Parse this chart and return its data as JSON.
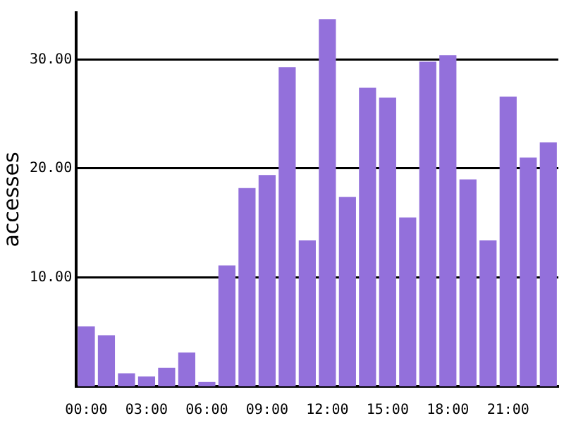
{
  "chart_data": {
    "type": "bar",
    "ylabel": "accesses",
    "categories": [
      "00:00",
      null,
      null,
      "03:00",
      null,
      null,
      "06:00",
      null,
      null,
      "09:00",
      null,
      null,
      "12:00",
      null,
      null,
      "15:00",
      null,
      null,
      "18:00",
      null,
      null,
      "21:00",
      null,
      null
    ],
    "values": [
      5.5,
      4.7,
      1.2,
      0.9,
      1.7,
      3.1,
      0.4,
      11.1,
      18.2,
      19.4,
      29.3,
      13.4,
      33.7,
      17.4,
      27.4,
      26.5,
      15.5,
      29.8,
      30.4,
      19.0,
      13.4,
      26.6,
      21.0,
      22.4
    ],
    "color": "#9370db",
    "ylim": [
      0,
      34.3
    ],
    "yticks": [
      {
        "value": 10,
        "label": "10.00"
      },
      {
        "value": 20,
        "label": "20.00"
      },
      {
        "value": 30,
        "label": "30.00"
      }
    ],
    "grid": "y"
  }
}
